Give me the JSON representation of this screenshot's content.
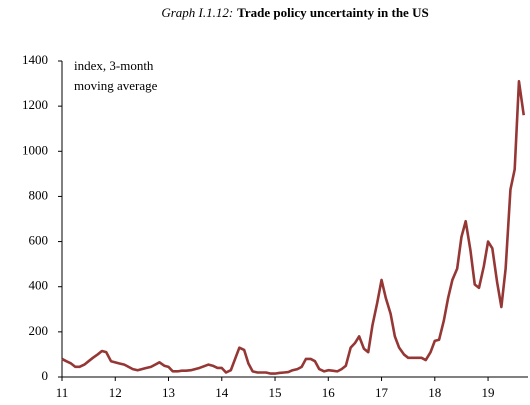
{
  "chart_data": {
    "type": "line",
    "title_label": "Graph I.1.12:",
    "title": "Trade policy uncertainty in the US",
    "ylabel": [
      "index, 3-month",
      "moving average"
    ],
    "x": [
      11.0,
      11.08,
      11.17,
      11.25,
      11.33,
      11.42,
      11.5,
      11.58,
      11.67,
      11.75,
      11.83,
      11.92,
      12.0,
      12.08,
      12.17,
      12.25,
      12.33,
      12.42,
      12.5,
      12.58,
      12.67,
      12.75,
      12.83,
      12.92,
      13.0,
      13.08,
      13.17,
      13.25,
      13.33,
      13.42,
      13.5,
      13.58,
      13.67,
      13.75,
      13.83,
      13.92,
      14.0,
      14.08,
      14.17,
      14.25,
      14.33,
      14.42,
      14.5,
      14.58,
      14.67,
      14.75,
      14.83,
      14.92,
      15.0,
      15.08,
      15.17,
      15.25,
      15.33,
      15.42,
      15.5,
      15.58,
      15.67,
      15.75,
      15.83,
      15.92,
      16.0,
      16.08,
      16.17,
      16.25,
      16.33,
      16.42,
      16.5,
      16.58,
      16.67,
      16.75,
      16.83,
      16.92,
      17.0,
      17.08,
      17.17,
      17.25,
      17.33,
      17.42,
      17.5,
      17.58,
      17.67,
      17.75,
      17.83,
      17.92,
      18.0,
      18.08,
      18.17,
      18.25,
      18.33,
      18.42,
      18.5,
      18.58,
      18.67,
      18.75,
      18.83,
      18.92,
      19.0,
      19.08,
      19.17,
      19.25,
      19.33,
      19.42,
      19.5,
      19.58,
      19.67
    ],
    "series": [
      {
        "color": "#953735",
        "values": [
          80,
          70,
          60,
          45,
          45,
          55,
          70,
          85,
          100,
          115,
          110,
          70,
          65,
          60,
          55,
          45,
          35,
          30,
          35,
          40,
          45,
          55,
          65,
          50,
          45,
          25,
          25,
          28,
          28,
          30,
          35,
          40,
          48,
          55,
          50,
          40,
          40,
          20,
          30,
          80,
          130,
          120,
          60,
          25,
          20,
          20,
          20,
          15,
          15,
          18,
          20,
          22,
          30,
          35,
          45,
          80,
          80,
          70,
          35,
          25,
          30,
          28,
          25,
          35,
          50,
          130,
          150,
          180,
          125,
          110,
          230,
          330,
          430,
          350,
          280,
          180,
          130,
          100,
          85,
          85,
          85,
          85,
          75,
          110,
          160,
          165,
          250,
          350,
          430,
          480,
          620,
          690,
          560,
          410,
          395,
          490,
          600,
          570,
          420,
          310,
          480,
          830,
          920,
          1310,
          1160
        ]
      }
    ],
    "xlim": [
      11,
      19.75
    ],
    "xticks": [
      11,
      12,
      13,
      14,
      15,
      16,
      17,
      18,
      19
    ],
    "ylim": [
      0,
      1400
    ],
    "yticks": [
      0,
      200,
      400,
      600,
      800,
      1000,
      1200,
      1400
    ]
  }
}
